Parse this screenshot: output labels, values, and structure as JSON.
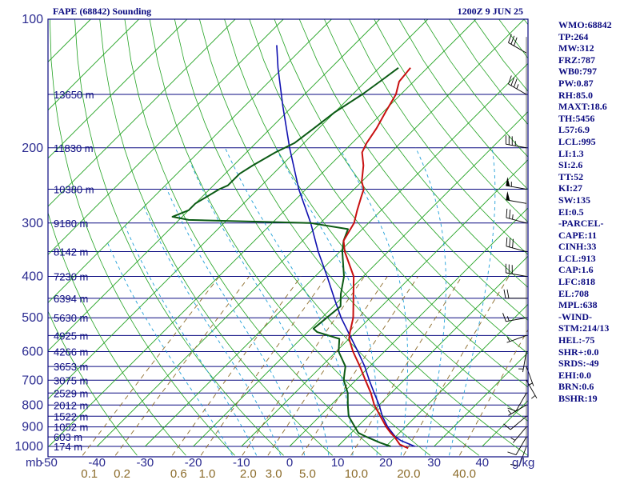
{
  "header": {
    "title": "FAPE (68842) Sounding",
    "time": "1200Z  9 JUN 25"
  },
  "colors": {
    "frame": "#0a0a80",
    "isobar": "#0a0a80",
    "isotherm": "#22a222",
    "dry_adiabat": "#22a222",
    "moist_adiabat": "#1f9fd8",
    "mixing_ratio": "#8b6b2a",
    "temperature": "#c81010",
    "dewpoint": "#0b5a14",
    "parcel": "#1010b0",
    "wind": "#000000"
  },
  "chart_data": {
    "type": "skew-t",
    "title": "FAPE (68842) Sounding",
    "pressure_unit": "mb",
    "pressure_levels": [
      100,
      200,
      300,
      400,
      500,
      600,
      700,
      800,
      900,
      1000
    ],
    "pressure_labels": [
      "100",
      "200",
      "300",
      "400",
      "500",
      "600",
      "700",
      "800",
      "900",
      "1000"
    ],
    "temperature_ticks": [
      -50,
      -40,
      -30,
      -20,
      -10,
      0,
      10,
      20,
      30,
      40
    ],
    "temperature_tick_labels": [
      "-50",
      "-40",
      "-30",
      "-20",
      "-10",
      "0",
      "10",
      "20",
      "30",
      "40"
    ],
    "mixing_ratio_unit": "g/kg",
    "mixing_ratio_values": [
      0.1,
      0.2,
      0.6,
      1.0,
      2.0,
      3.0,
      5.0,
      10.0,
      20.0,
      40.0
    ],
    "mixing_ratio_labels": [
      "0.1",
      "0.2",
      "0.6",
      "1.0",
      "2.0",
      "3.0",
      "5.0",
      "10.0",
      "20.0",
      "40.0"
    ],
    "height_levels": [
      {
        "p": 150,
        "label": "13650 m"
      },
      {
        "p": 200,
        "label": "11830 m"
      },
      {
        "p": 250,
        "label": "10380 m"
      },
      {
        "p": 300,
        "label": "9180 m"
      },
      {
        "p": 350,
        "label": "8142 m"
      },
      {
        "p": 400,
        "label": "7230 m"
      },
      {
        "p": 450,
        "label": "6394 m"
      },
      {
        "p": 500,
        "label": "5630 m"
      },
      {
        "p": 550,
        "label": "4925 m"
      },
      {
        "p": 600,
        "label": "4266 m"
      },
      {
        "p": 650,
        "label": "3653 m"
      },
      {
        "p": 700,
        "label": "3075 m"
      },
      {
        "p": 750,
        "label": "2529 m"
      },
      {
        "p": 800,
        "label": "2012 m"
      },
      {
        "p": 850,
        "label": "1522 m"
      },
      {
        "p": 900,
        "label": "1052 m"
      },
      {
        "p": 950,
        "label": "603 m"
      },
      {
        "p": 1000,
        "label": "174 m"
      }
    ],
    "temperature": [
      [
        1010,
        25
      ],
      [
        990,
        22.5
      ],
      [
        950,
        19.8
      ],
      [
        930,
        18.2
      ],
      [
        900,
        16
      ],
      [
        850,
        12.6
      ],
      [
        800,
        9
      ],
      [
        750,
        5.8
      ],
      [
        700,
        2
      ],
      [
        650,
        -2
      ],
      [
        600,
        -6.5
      ],
      [
        560,
        -10
      ],
      [
        540,
        -11.2
      ],
      [
        500,
        -13.5
      ],
      [
        450,
        -17.5
      ],
      [
        400,
        -22
      ],
      [
        350,
        -29
      ],
      [
        330,
        -31.5
      ],
      [
        300,
        -33
      ],
      [
        280,
        -35
      ],
      [
        260,
        -37
      ],
      [
        250,
        -38
      ],
      [
        240,
        -40
      ],
      [
        220,
        -43
      ],
      [
        205,
        -46
      ],
      [
        195,
        -47
      ],
      [
        180,
        -48
      ],
      [
        165,
        -49.5
      ],
      [
        150,
        -51
      ],
      [
        140,
        -53
      ],
      [
        130,
        -53.5
      ]
    ],
    "dewpoint": [
      [
        1000,
        21
      ],
      [
        980,
        18
      ],
      [
        950,
        14
      ],
      [
        930,
        11.5
      ],
      [
        900,
        9.5
      ],
      [
        850,
        6
      ],
      [
        800,
        3.5
      ],
      [
        750,
        1
      ],
      [
        700,
        -2.5
      ],
      [
        680,
        -3.5
      ],
      [
        670,
        -4
      ],
      [
        650,
        -5
      ],
      [
        600,
        -9.5
      ],
      [
        560,
        -12
      ],
      [
        540,
        -18
      ],
      [
        530,
        -19.5
      ],
      [
        500,
        -19
      ],
      [
        470,
        -18.5
      ],
      [
        440,
        -21
      ],
      [
        400,
        -24
      ],
      [
        350,
        -29.5
      ],
      [
        330,
        -31.5
      ],
      [
        310,
        -33
      ],
      [
        300,
        -42
      ],
      [
        295,
        -68
      ],
      [
        290,
        -72
      ],
      [
        280,
        -70
      ],
      [
        270,
        -70
      ],
      [
        260,
        -69
      ],
      [
        250,
        -68
      ],
      [
        245,
        -67
      ],
      [
        230,
        -67
      ],
      [
        220,
        -66
      ],
      [
        205,
        -64
      ],
      [
        195,
        -62
      ],
      [
        180,
        -61
      ],
      [
        165,
        -60
      ],
      [
        150,
        -58
      ],
      [
        140,
        -57
      ],
      [
        130,
        -56
      ]
    ],
    "parcel": [
      [
        1000,
        26
      ],
      [
        970,
        22
      ],
      [
        950,
        20
      ],
      [
        900,
        16.3
      ],
      [
        850,
        13
      ],
      [
        800,
        10
      ],
      [
        750,
        6.5
      ],
      [
        700,
        2.8
      ],
      [
        650,
        -1
      ],
      [
        600,
        -5.5
      ],
      [
        550,
        -10.5
      ],
      [
        500,
        -16
      ],
      [
        450,
        -21.5
      ],
      [
        400,
        -27.5
      ],
      [
        350,
        -34.5
      ],
      [
        300,
        -42
      ],
      [
        250,
        -51.5
      ],
      [
        200,
        -62
      ],
      [
        160,
        -72
      ],
      [
        130,
        -81
      ],
      [
        115,
        -86
      ]
    ],
    "wind_barbs": [
      {
        "p": 1000,
        "dir": 200,
        "spd": 10
      },
      {
        "p": 950,
        "dir": 210,
        "spd": 10
      },
      {
        "p": 900,
        "dir": 220,
        "spd": 5
      },
      {
        "p": 850,
        "dir": 230,
        "spd": 10
      },
      {
        "p": 800,
        "dir": 240,
        "spd": 5
      },
      {
        "p": 750,
        "dir": 210,
        "spd": 10
      },
      {
        "p": 700,
        "dir": 150,
        "spd": 5
      },
      {
        "p": 650,
        "dir": 160,
        "spd": 5
      },
      {
        "p": 600,
        "dir": 190,
        "spd": 5
      },
      {
        "p": 550,
        "dir": 250,
        "spd": 5
      },
      {
        "p": 500,
        "dir": 260,
        "spd": 15
      },
      {
        "p": 450,
        "dir": 270,
        "spd": 20
      },
      {
        "p": 400,
        "dir": 280,
        "spd": 30
      },
      {
        "p": 350,
        "dir": 285,
        "spd": 30
      },
      {
        "p": 300,
        "dir": 285,
        "spd": 25
      },
      {
        "p": 270,
        "dir": 280,
        "spd": 50
      },
      {
        "p": 250,
        "dir": 280,
        "spd": 55
      },
      {
        "p": 200,
        "dir": 280,
        "spd": 35
      },
      {
        "p": 150,
        "dir": 300,
        "spd": 35
      },
      {
        "p": 120,
        "dir": 300,
        "spd": 30
      }
    ]
  },
  "stats": [
    "WMO:68842",
    "TP:264",
    "MW:312",
    "FRZ:787",
    "WB0:797",
    "PW:0.87",
    "RH:85.0",
    "MAXT:18.6",
    "TH:5456",
    "L57:6.9",
    "LCL:995",
    "LI:1.3",
    "SI:2.6",
    "TT:52",
    "KI:27",
    "SW:135",
    "EI:0.5",
    "-PARCEL-",
    "CAPE:11",
    "CINH:33",
    "LCL:913",
    "CAP:1.6",
    "LFC:818",
    "EL:708",
    "MPL:638",
    "-WIND-",
    "STM:214/13",
    "HEL:-75",
    "SHR+:0.0",
    "SRDS:-49",
    "EHI:0.0",
    "BRN:0.6",
    "BSHR:19"
  ]
}
